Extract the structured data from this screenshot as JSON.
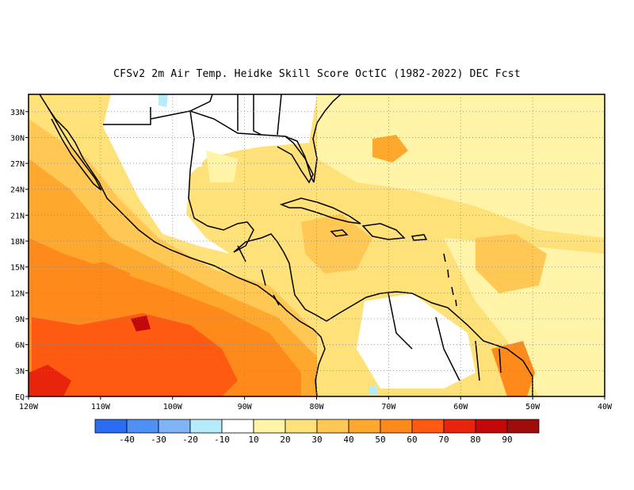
{
  "title": "CFSv2  2m Air Temp. Heidke Skill Score OctIC (1982-2022) DEC Fcst",
  "map": {
    "lon_range": [
      -120,
      -40
    ],
    "lat_range": [
      0,
      35
    ],
    "x_ticks": [
      "120W",
      "110W",
      "100W",
      "90W",
      "80W",
      "70W",
      "60W",
      "50W",
      "40W"
    ],
    "y_ticks": [
      "EQ",
      "3N",
      "6N",
      "9N",
      "12N",
      "15N",
      "18N",
      "21N",
      "24N",
      "27N",
      "30N",
      "33N"
    ]
  },
  "colorbar": {
    "colors": [
      "#2a6df4",
      "#4f90f4",
      "#7fb4f6",
      "#b4ecfb",
      "#ffffff",
      "#fff4a8",
      "#ffe17a",
      "#ffc855",
      "#ffa82e",
      "#ff8a1c",
      "#ff5a12",
      "#e8240c",
      "#c4080a",
      "#a00c0c"
    ],
    "labels": [
      "-40",
      "-30",
      "-20",
      "-10",
      "10",
      "20",
      "30",
      "40",
      "50",
      "60",
      "70",
      "80",
      "90"
    ]
  }
}
